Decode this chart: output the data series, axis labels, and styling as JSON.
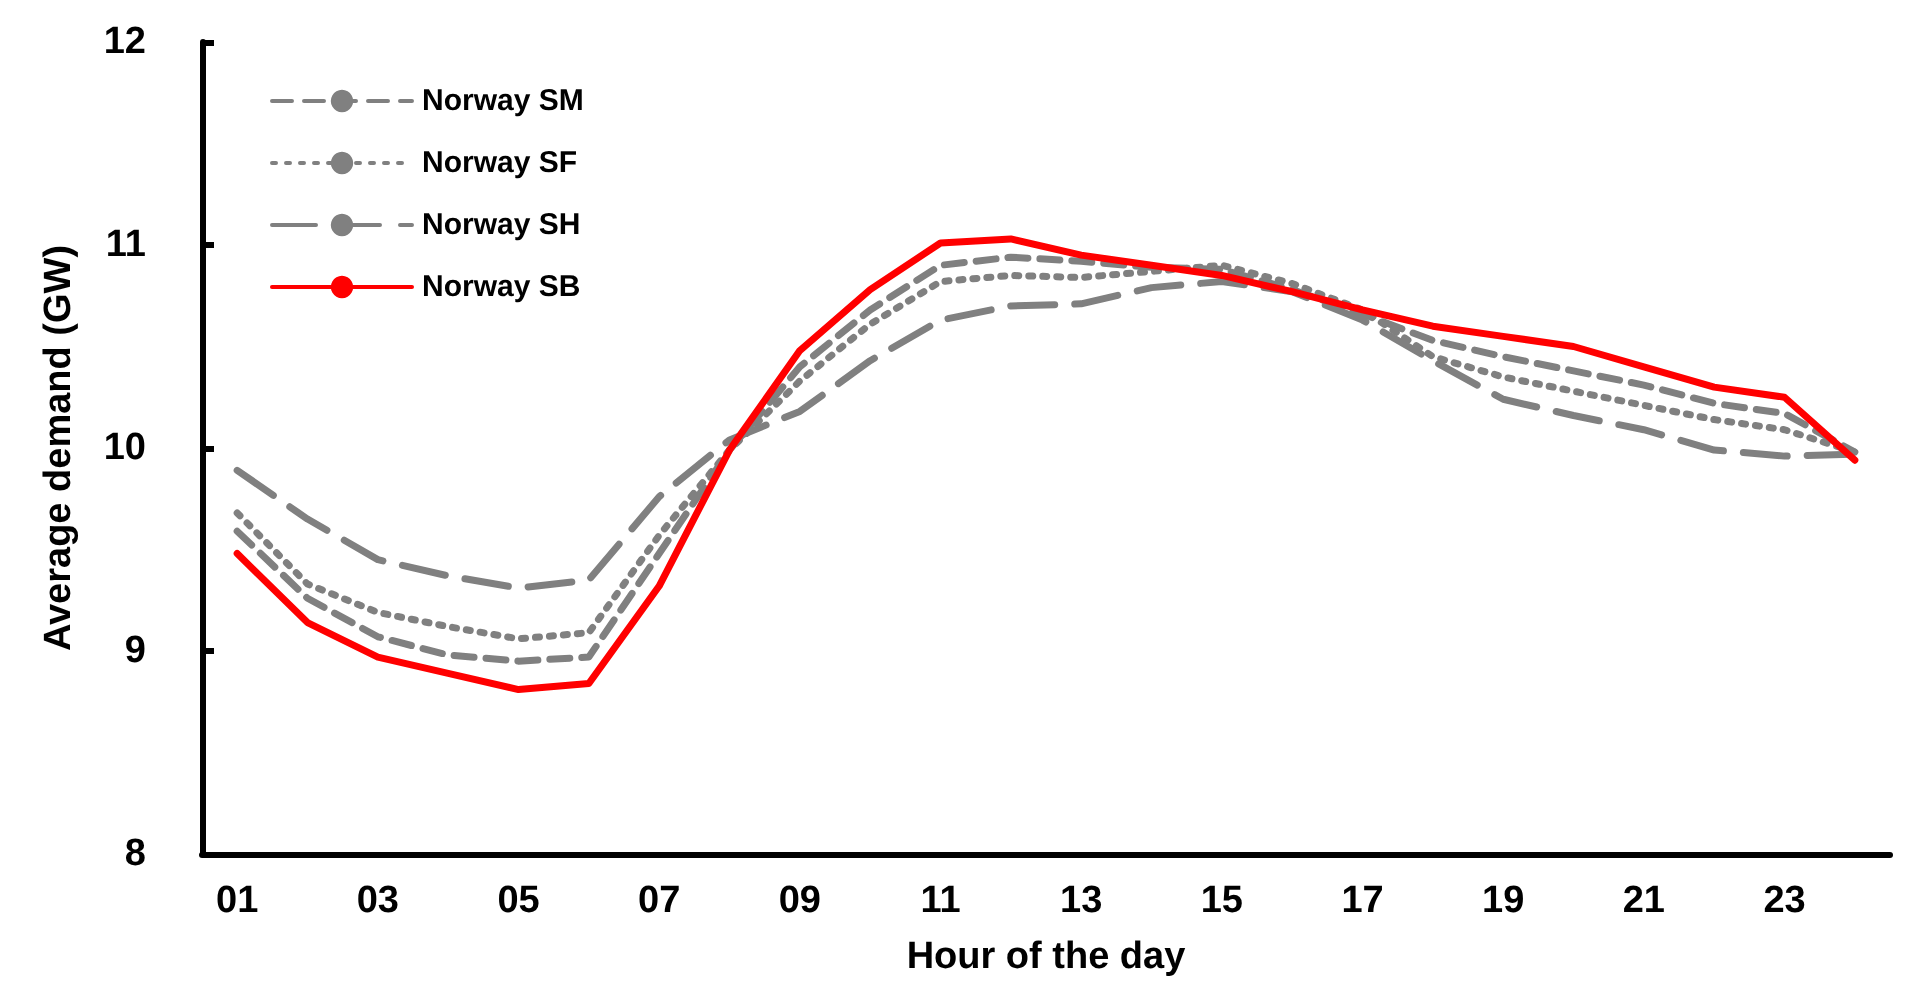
{
  "chart_data": {
    "type": "line",
    "xlabel": "Hour of the day",
    "ylabel": "Average demand (GW)",
    "categories": [
      "01",
      null,
      "03",
      null,
      "05",
      null,
      "07",
      null,
      "09",
      null,
      "11",
      null,
      "13",
      null,
      "15",
      null,
      "17",
      null,
      "19",
      null,
      "21",
      null,
      "23",
      null
    ],
    "ylim": [
      8,
      12
    ],
    "yticks": [
      8,
      9,
      10,
      11,
      12
    ],
    "grid": false,
    "legend": "top left",
    "marker": "none",
    "series": [
      {
        "name": "Norway SM",
        "color": "#808080",
        "line_style": "dashed",
        "values": [
          9.59,
          9.26,
          9.07,
          8.98,
          8.95,
          8.97,
          9.48,
          9.99,
          10.4,
          10.68,
          10.9,
          10.94,
          10.92,
          10.89,
          10.88,
          10.78,
          10.66,
          10.53,
          10.45,
          10.38,
          10.31,
          10.22,
          10.17,
          9.98
        ]
      },
      {
        "name": "Norway SF",
        "color": "#808080",
        "line_style": "dotted",
        "values": [
          9.68,
          9.33,
          9.19,
          9.12,
          9.06,
          9.09,
          9.57,
          9.99,
          10.33,
          10.61,
          10.82,
          10.85,
          10.84,
          10.87,
          10.9,
          10.81,
          10.68,
          10.45,
          10.35,
          10.28,
          10.21,
          10.14,
          10.09,
          9.98
        ]
      },
      {
        "name": "Norway SH",
        "color": "#808080",
        "line_style": "longdash",
        "values": [
          9.89,
          9.65,
          9.45,
          9.37,
          9.31,
          9.35,
          9.76,
          10.04,
          10.18,
          10.43,
          10.63,
          10.7,
          10.71,
          10.79,
          10.82,
          10.77,
          10.63,
          10.43,
          10.24,
          10.16,
          10.09,
          9.99,
          9.96,
          9.97
        ]
      },
      {
        "name": "Norway SB",
        "color": "#ff0000",
        "line_style": "solid",
        "values": [
          9.48,
          9.14,
          8.97,
          8.89,
          8.81,
          8.84,
          9.32,
          9.99,
          10.48,
          10.78,
          11.01,
          11.03,
          10.95,
          10.9,
          10.85,
          10.77,
          10.68,
          10.6,
          10.55,
          10.5,
          10.4,
          10.3,
          10.25,
          9.94
        ]
      }
    ]
  }
}
